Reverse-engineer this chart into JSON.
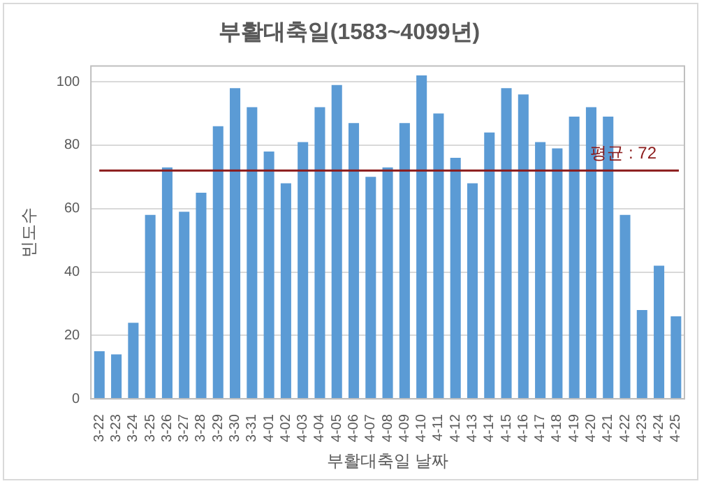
{
  "chart_data": {
    "type": "bar",
    "title": "부활대축일(1583~4099년)",
    "xlabel": "부활대축일 날짜",
    "ylabel": "빈도수",
    "categories": [
      "3-22",
      "3-23",
      "3-24",
      "3-25",
      "3-26",
      "3-27",
      "3-28",
      "3-29",
      "3-30",
      "3-31",
      "4-01",
      "4-02",
      "4-03",
      "4-04",
      "4-05",
      "4-06",
      "4-07",
      "4-08",
      "4-09",
      "4-10",
      "4-11",
      "4-12",
      "4-13",
      "4-14",
      "4-15",
      "4-16",
      "4-17",
      "4-18",
      "4-19",
      "4-20",
      "4-21",
      "4-22",
      "4-23",
      "4-24",
      "4-25"
    ],
    "values": [
      15,
      14,
      24,
      58,
      73,
      59,
      65,
      86,
      98,
      92,
      78,
      68,
      81,
      92,
      99,
      87,
      70,
      73,
      87,
      102,
      90,
      76,
      68,
      84,
      98,
      96,
      81,
      79,
      89,
      92,
      89,
      58,
      28,
      42,
      26
    ],
    "color": "#5b9bd5",
    "ylim": [
      0,
      105
    ],
    "yticks": [
      0,
      20,
      40,
      60,
      80,
      100
    ],
    "grid": "y",
    "legend": false,
    "ref_lines": [
      {
        "axis": "y",
        "value": 72,
        "label": "평균 : 72",
        "color": "#8b1a1a"
      }
    ]
  }
}
